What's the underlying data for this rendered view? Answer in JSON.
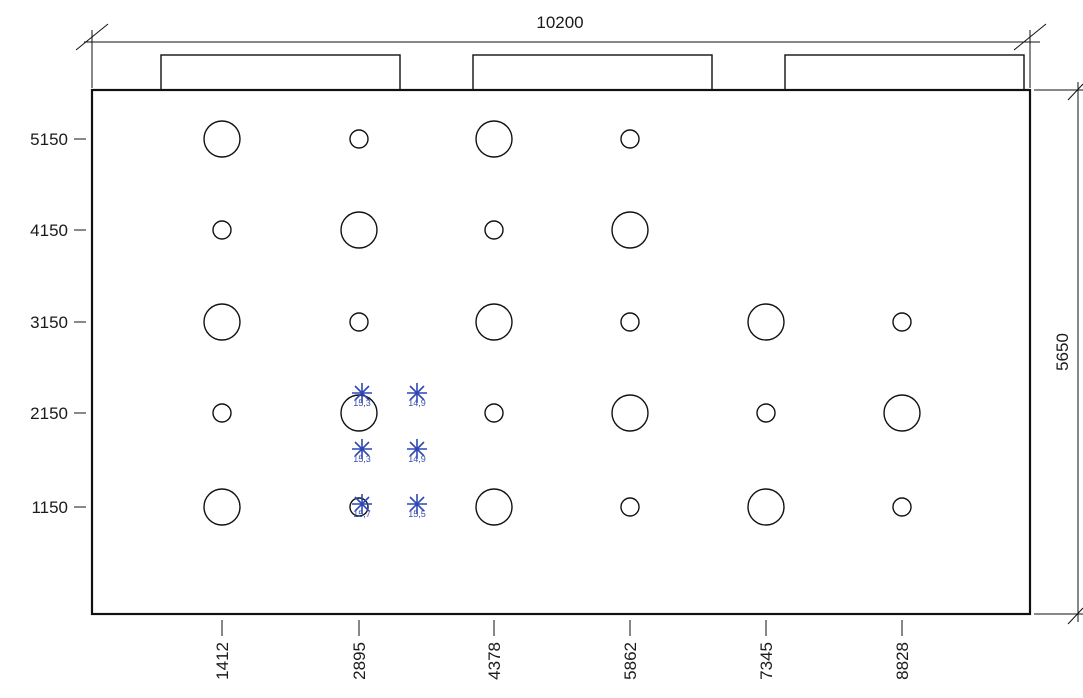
{
  "dimensions": {
    "width_label": "10200",
    "height_label": "5650"
  },
  "x_ticks": [
    "1412",
    "2895",
    "4378",
    "5862",
    "7345",
    "8828"
  ],
  "y_ticks": [
    "5150",
    "4150",
    "3150",
    "2150",
    "1150"
  ],
  "holes": [
    {
      "x": "1412",
      "y": "5150",
      "size": "large"
    },
    {
      "x": "2895",
      "y": "5150",
      "size": "small"
    },
    {
      "x": "4378",
      "y": "5150",
      "size": "large"
    },
    {
      "x": "5862",
      "y": "5150",
      "size": "small"
    },
    {
      "x": "1412",
      "y": "4150",
      "size": "small"
    },
    {
      "x": "2895",
      "y": "4150",
      "size": "large"
    },
    {
      "x": "4378",
      "y": "4150",
      "size": "small"
    },
    {
      "x": "5862",
      "y": "4150",
      "size": "large"
    },
    {
      "x": "1412",
      "y": "3150",
      "size": "large"
    },
    {
      "x": "2895",
      "y": "3150",
      "size": "small"
    },
    {
      "x": "4378",
      "y": "3150",
      "size": "large"
    },
    {
      "x": "5862",
      "y": "3150",
      "size": "small"
    },
    {
      "x": "7345",
      "y": "3150",
      "size": "large"
    },
    {
      "x": "8828",
      "y": "3150",
      "size": "small"
    },
    {
      "x": "1412",
      "y": "2150",
      "size": "small"
    },
    {
      "x": "2895",
      "y": "2150",
      "size": "large"
    },
    {
      "x": "4378",
      "y": "2150",
      "size": "small"
    },
    {
      "x": "5862",
      "y": "2150",
      "size": "large"
    },
    {
      "x": "7345",
      "y": "2150",
      "size": "small"
    },
    {
      "x": "8828",
      "y": "2150",
      "size": "large"
    },
    {
      "x": "1412",
      "y": "1150",
      "size": "large"
    },
    {
      "x": "2895",
      "y": "1150",
      "size": "small"
    },
    {
      "x": "4378",
      "y": "1150",
      "size": "large"
    },
    {
      "x": "5862",
      "y": "1150",
      "size": "small"
    },
    {
      "x": "7345",
      "y": "1150",
      "size": "large"
    },
    {
      "x": "8828",
      "y": "1150",
      "size": "small"
    }
  ],
  "markers": [
    {
      "label": "15,3",
      "col": 0,
      "row": 0
    },
    {
      "label": "14,9",
      "col": 1,
      "row": 0
    },
    {
      "label": "15,3",
      "col": 0,
      "row": 1
    },
    {
      "label": "14,9",
      "col": 1,
      "row": 1
    },
    {
      "label": "15,7",
      "col": 0,
      "row": 2
    },
    {
      "label": "15,5",
      "col": 1,
      "row": 2
    }
  ],
  "colors": {
    "line": "#111111",
    "marker": "#2f47b5"
  }
}
